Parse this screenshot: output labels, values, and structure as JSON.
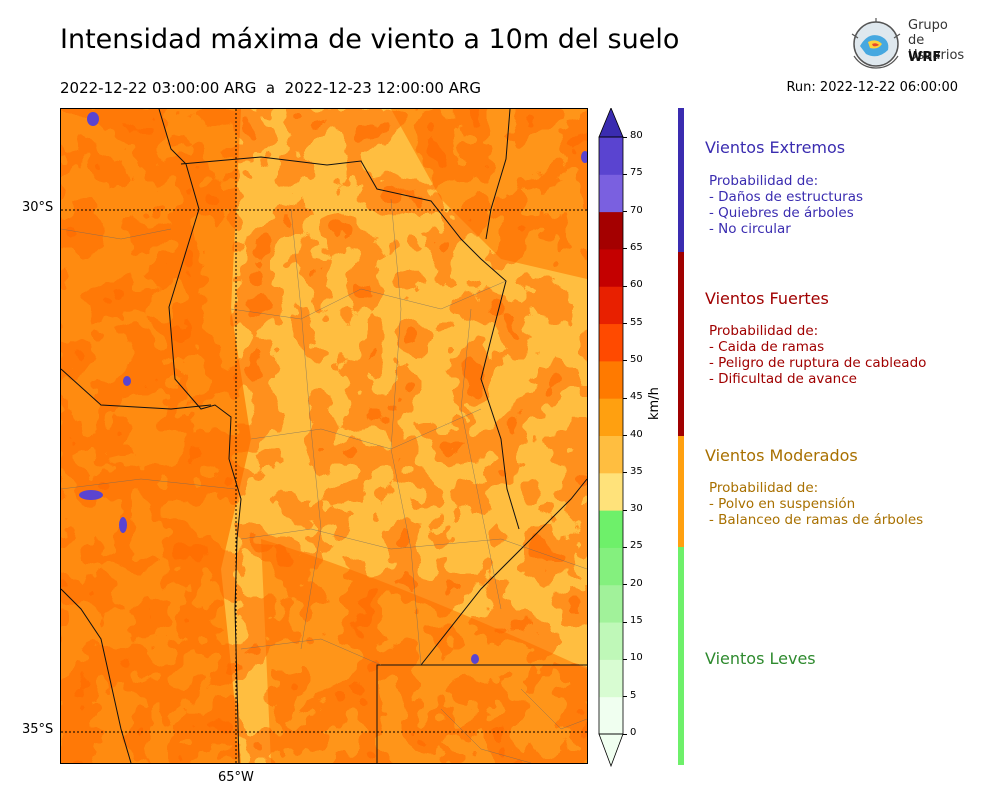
{
  "header": {
    "title": "Intensidad máxima de viento a 10m del suelo",
    "period": "2022-12-22 03:00:00 ARG  a  2022-12-23 12:00:00 ARG",
    "run": "Run: 2022-12-22 06:00:00"
  },
  "logo": {
    "line1": "Grupo de",
    "line2": "Usuarios",
    "line3": "WRF"
  },
  "map": {
    "lat_labels": [
      "30°S",
      "35°S"
    ],
    "lon_labels": [
      "65°W"
    ]
  },
  "colorbar": {
    "unit": "km/h",
    "ticks": [
      "0",
      "5",
      "10",
      "15",
      "20",
      "25",
      "30",
      "35",
      "40",
      "45",
      "50",
      "55",
      "60",
      "65",
      "70",
      "75",
      "80"
    ],
    "colors": [
      "#f0fff0",
      "#d8fcd2",
      "#bff8b8",
      "#a1f29a",
      "#84f07e",
      "#6ef06a",
      "#ffe27a",
      "#ffbe40",
      "#ffa010",
      "#ff7a00",
      "#ff4a00",
      "#e82000",
      "#c40000",
      "#a40000",
      "#7a60e0",
      "#5a44d0",
      "#4b3cc4"
    ],
    "extend_color": "#3a2cb0"
  },
  "categories": [
    {
      "title": "Vientos Extremos",
      "color": "#3a2cb0",
      "lines": [
        "Probabilidad de:",
        "- Daños de estructuras",
        "- Quiebres de árboles",
        "- No circular"
      ]
    },
    {
      "title": "Vientos Fuertes",
      "color": "#a00000",
      "lines": [
        "Probabilidad de:",
        "- Caida de ramas",
        "- Peligro de ruptura de cableado",
        "- Dificultad de avance"
      ]
    },
    {
      "title": "Vientos Moderados",
      "color": "#a87000",
      "lines": [
        "Probabilidad de:",
        "- Polvo en suspensión",
        "- Balanceo de ramas de árboles"
      ]
    },
    {
      "title": "Vientos Leves",
      "color": "#2e8a2e",
      "lines": []
    }
  ],
  "category_bar_colors": [
    "#3a2cb0",
    "#a00000",
    "#ffa010",
    "#6ef06a"
  ]
}
